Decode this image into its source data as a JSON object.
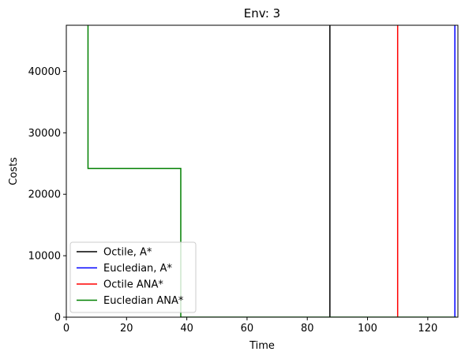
{
  "chart_data": {
    "type": "line",
    "title": "Env: 3",
    "xlabel": "Time",
    "ylabel": "Costs",
    "xlim": [
      0,
      130
    ],
    "ylim": [
      0,
      47500
    ],
    "xticks": [
      0,
      20,
      40,
      60,
      80,
      100,
      120
    ],
    "yticks": [
      0,
      10000,
      20000,
      30000,
      40000
    ],
    "grid": false,
    "legend_position": "lower-left",
    "series": [
      {
        "name": "Octile, A*",
        "color": "#000000",
        "points": [
          [
            87.5,
            47500
          ],
          [
            87.5,
            0
          ]
        ]
      },
      {
        "name": "Eucledian, A*",
        "color": "#0000ff",
        "points": [
          [
            129,
            47500
          ],
          [
            129,
            0
          ]
        ]
      },
      {
        "name": "Octile ANA*",
        "color": "#ff0000",
        "points": [
          [
            110,
            47500
          ],
          [
            110,
            0
          ]
        ]
      },
      {
        "name": "Eucledian ANA*",
        "color": "#008000",
        "points": [
          [
            7.2,
            47500
          ],
          [
            7.2,
            24200
          ],
          [
            38,
            24200
          ],
          [
            38,
            0
          ],
          [
            129.5,
            0
          ]
        ]
      }
    ]
  }
}
